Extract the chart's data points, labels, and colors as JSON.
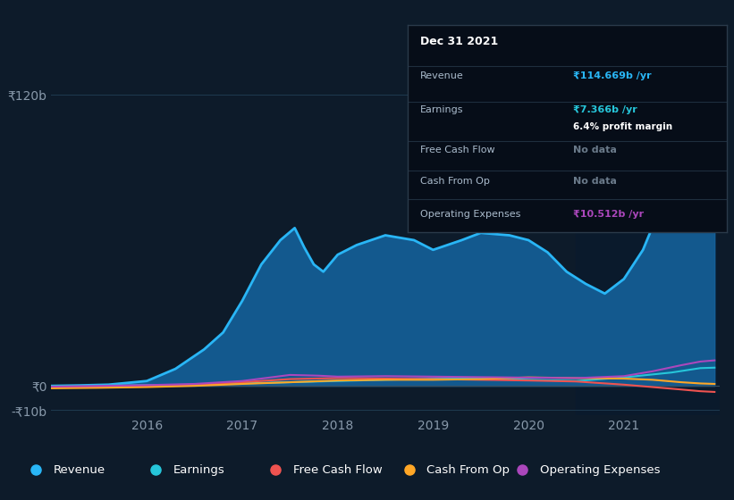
{
  "bg_color": "#0d1b2a",
  "plot_bg_color": "#0d1b2a",
  "grid_color": "#1e3a50",
  "revenue_color": "#29b6f6",
  "revenue_fill": "#1565a0",
  "earnings_color": "#26c6da",
  "free_cash_flow_color": "#ef5350",
  "cash_from_op_color": "#ffa726",
  "operating_expenses_color": "#ab47bc",
  "ylabel_120b": "₹120b",
  "ylabel_0": "₹0",
  "ylabel_neg10b": "-₹10b",
  "x_ticks": [
    2016,
    2017,
    2018,
    2019,
    2020,
    2021
  ],
  "revenue": [
    [
      2015.0,
      0
    ],
    [
      2015.3,
      0.2
    ],
    [
      2015.6,
      0.5
    ],
    [
      2016.0,
      2
    ],
    [
      2016.3,
      7
    ],
    [
      2016.6,
      15
    ],
    [
      2016.8,
      22
    ],
    [
      2017.0,
      35
    ],
    [
      2017.2,
      50
    ],
    [
      2017.4,
      60
    ],
    [
      2017.55,
      65
    ],
    [
      2017.65,
      57
    ],
    [
      2017.75,
      50
    ],
    [
      2017.85,
      47
    ],
    [
      2018.0,
      54
    ],
    [
      2018.2,
      58
    ],
    [
      2018.5,
      62
    ],
    [
      2018.8,
      60
    ],
    [
      2019.0,
      56
    ],
    [
      2019.3,
      60
    ],
    [
      2019.5,
      63
    ],
    [
      2019.8,
      62
    ],
    [
      2020.0,
      60
    ],
    [
      2020.2,
      55
    ],
    [
      2020.4,
      47
    ],
    [
      2020.6,
      42
    ],
    [
      2020.8,
      38
    ],
    [
      2021.0,
      44
    ],
    [
      2021.2,
      56
    ],
    [
      2021.4,
      75
    ],
    [
      2021.6,
      98
    ],
    [
      2021.8,
      113
    ],
    [
      2021.95,
      115
    ]
  ],
  "earnings": [
    [
      2015.0,
      0
    ],
    [
      2015.5,
      0.1
    ],
    [
      2016.0,
      0.3
    ],
    [
      2016.5,
      0.5
    ],
    [
      2017.0,
      1.0
    ],
    [
      2017.5,
      1.5
    ],
    [
      2018.0,
      2.0
    ],
    [
      2018.5,
      2.5
    ],
    [
      2019.0,
      3.0
    ],
    [
      2019.5,
      3.2
    ],
    [
      2020.0,
      2.5
    ],
    [
      2020.5,
      2.0
    ],
    [
      2021.0,
      3.5
    ],
    [
      2021.5,
      5.5
    ],
    [
      2021.8,
      7.3
    ],
    [
      2021.95,
      7.5
    ]
  ],
  "free_cash_flow": [
    [
      2015.0,
      -0.5
    ],
    [
      2015.5,
      -0.3
    ],
    [
      2016.0,
      -0.2
    ],
    [
      2016.5,
      0.3
    ],
    [
      2017.0,
      1.5
    ],
    [
      2017.5,
      2.8
    ],
    [
      2018.0,
      3.2
    ],
    [
      2018.5,
      3.0
    ],
    [
      2019.0,
      2.8
    ],
    [
      2019.5,
      2.5
    ],
    [
      2020.0,
      2.2
    ],
    [
      2020.5,
      1.8
    ],
    [
      2021.0,
      0.5
    ],
    [
      2021.3,
      -0.5
    ],
    [
      2021.6,
      -1.5
    ],
    [
      2021.8,
      -2.2
    ],
    [
      2021.95,
      -2.5
    ]
  ],
  "cash_from_op": [
    [
      2015.0,
      -1.0
    ],
    [
      2015.5,
      -0.8
    ],
    [
      2016.0,
      -0.5
    ],
    [
      2016.5,
      0.0
    ],
    [
      2017.0,
      0.8
    ],
    [
      2017.5,
      1.5
    ],
    [
      2018.0,
      2.2
    ],
    [
      2018.5,
      2.5
    ],
    [
      2019.0,
      2.5
    ],
    [
      2019.5,
      2.8
    ],
    [
      2020.0,
      3.5
    ],
    [
      2020.5,
      3.2
    ],
    [
      2021.0,
      3.0
    ],
    [
      2021.3,
      2.5
    ],
    [
      2021.6,
      1.5
    ],
    [
      2021.8,
      1.0
    ],
    [
      2021.95,
      0.8
    ]
  ],
  "operating_expenses": [
    [
      2015.0,
      -0.3
    ],
    [
      2015.5,
      0.0
    ],
    [
      2016.0,
      0.3
    ],
    [
      2016.5,
      0.8
    ],
    [
      2017.0,
      2.0
    ],
    [
      2017.5,
      4.5
    ],
    [
      2017.8,
      4.2
    ],
    [
      2018.0,
      3.8
    ],
    [
      2018.5,
      4.0
    ],
    [
      2019.0,
      3.8
    ],
    [
      2019.5,
      3.6
    ],
    [
      2020.0,
      3.4
    ],
    [
      2020.5,
      3.2
    ],
    [
      2021.0,
      4.0
    ],
    [
      2021.3,
      6.0
    ],
    [
      2021.6,
      8.5
    ],
    [
      2021.8,
      10.0
    ],
    [
      2021.95,
      10.5
    ]
  ],
  "ylim_min": -12,
  "ylim_max": 128,
  "xlim_min": 2015.0,
  "xlim_max": 2022.0,
  "tooltip": {
    "date": "Dec 31 2021",
    "revenue_label": "Revenue",
    "revenue_value": "₹114.669b /yr",
    "earnings_label": "Earnings",
    "earnings_value": "₹7.366b /yr",
    "margin_text": "6.4% profit margin",
    "fcf_label": "Free Cash Flow",
    "fcf_value": "No data",
    "cfo_label": "Cash From Op",
    "cfo_value": "No data",
    "opex_label": "Operating Expenses",
    "opex_value": "₹10.512b /yr"
  },
  "legend_items": [
    {
      "label": "Revenue",
      "color": "#29b6f6"
    },
    {
      "label": "Earnings",
      "color": "#26c6da"
    },
    {
      "label": "Free Cash Flow",
      "color": "#ef5350"
    },
    {
      "label": "Cash From Op",
      "color": "#ffa726"
    },
    {
      "label": "Operating Expenses",
      "color": "#ab47bc"
    }
  ]
}
